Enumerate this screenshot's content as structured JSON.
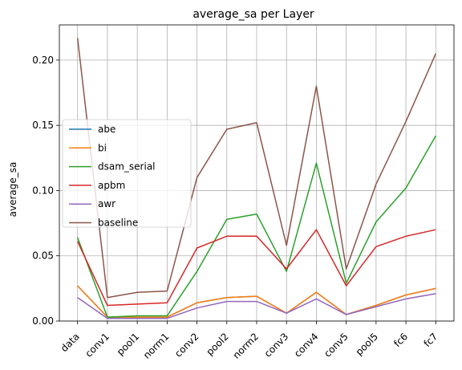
{
  "chart_data": {
    "type": "line",
    "title": "average_sa per Layer",
    "xlabel": "",
    "ylabel": "average_sa",
    "categories": [
      "data",
      "conv1",
      "pool1",
      "norm1",
      "conv2",
      "pool2",
      "norm2",
      "conv3",
      "conv4",
      "conv5",
      "pool5",
      "fc6",
      "fc7"
    ],
    "ylim": [
      0,
      0.227
    ],
    "yticks": [
      0.0,
      0.05,
      0.1,
      0.15,
      0.2
    ],
    "ytick_labels": [
      "0.00",
      "0.05",
      "0.10",
      "0.15",
      "0.20"
    ],
    "grid": true,
    "legend_position": "center-left",
    "series": [
      {
        "name": "abe",
        "color": "#1f77b4",
        "values": [
          0.027,
          0.003,
          0.003,
          0.003,
          0.014,
          0.018,
          0.019,
          0.006,
          0.022,
          0.005,
          0.012,
          0.02,
          0.025
        ]
      },
      {
        "name": "bi",
        "color": "#ff7f0e",
        "values": [
          0.027,
          0.003,
          0.003,
          0.003,
          0.014,
          0.018,
          0.019,
          0.006,
          0.022,
          0.005,
          0.012,
          0.02,
          0.025
        ]
      },
      {
        "name": "dsam_serial",
        "color": "#2ca02c",
        "values": [
          0.064,
          0.003,
          0.004,
          0.004,
          0.038,
          0.078,
          0.082,
          0.038,
          0.121,
          0.029,
          0.076,
          0.102,
          0.142
        ]
      },
      {
        "name": "apbm",
        "color": "#d62728",
        "values": [
          0.061,
          0.012,
          0.013,
          0.014,
          0.056,
          0.065,
          0.065,
          0.04,
          0.07,
          0.027,
          0.057,
          0.065,
          0.07
        ]
      },
      {
        "name": "awr",
        "color": "#9467bd",
        "values": [
          0.018,
          0.002,
          0.002,
          0.002,
          0.01,
          0.015,
          0.015,
          0.006,
          0.017,
          0.005,
          0.011,
          0.017,
          0.021
        ]
      },
      {
        "name": "baseline",
        "color": "#8c564b",
        "values": [
          0.217,
          0.018,
          0.022,
          0.023,
          0.11,
          0.147,
          0.152,
          0.058,
          0.18,
          0.04,
          0.105,
          0.153,
          0.205
        ]
      }
    ]
  }
}
